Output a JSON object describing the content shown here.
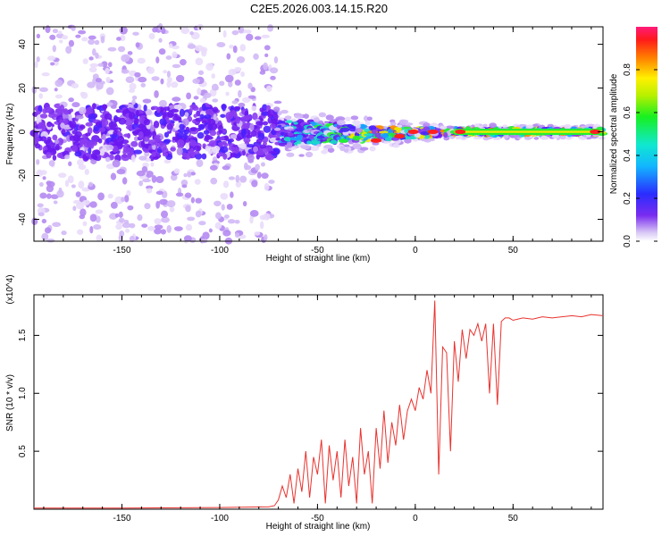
{
  "title": "C2E5.2026.003.14.15.R20",
  "colors": {
    "snr_line": "#e8332f",
    "axis": "#000000"
  },
  "chart_data": [
    {
      "type": "heatmap",
      "xlabel": "Height of straight line (km)",
      "ylabel": "Frequency (Hz)",
      "xlim": [
        -195,
        96
      ],
      "ylim": [
        -50,
        48
      ],
      "xticks": [
        -150,
        -100,
        -50,
        0,
        50
      ],
      "yticks": [
        -40,
        -20,
        0,
        20,
        40
      ],
      "colorbar": {
        "label": "Normalized spectral amplitude",
        "range": [
          0,
          1
        ],
        "ticks": [
          0.0,
          0.2,
          0.4,
          0.6,
          0.8
        ],
        "colormap": "rainbow (purple-blue-cyan-green-yellow-red-magenta)"
      },
      "description_points": [
        {
          "x": -195,
          "noise_band_hz": [
            -50,
            48
          ],
          "core_band_hz": [
            -12,
            12
          ],
          "peak_amp": 0.25
        },
        {
          "x": -72,
          "noise_band_hz": [
            -50,
            48
          ],
          "core_band_hz": [
            -12,
            12
          ],
          "peak_amp": 0.3
        },
        {
          "x": -70,
          "noise_band_hz": [
            -12,
            10
          ],
          "core_band_hz": [
            -6,
            6
          ],
          "peak_amp": 0.45
        },
        {
          "x": -20,
          "noise_band_hz": [
            -8,
            6
          ],
          "core_band_hz": [
            -4,
            2
          ],
          "peak_amp": 0.8
        },
        {
          "x": 20,
          "noise_band_hz": [
            -3,
            3
          ],
          "core_band_hz": [
            -1.5,
            1.5
          ],
          "peak_amp": 0.9
        },
        {
          "x": 96,
          "noise_band_hz": [
            -3,
            3
          ],
          "core_band_hz": [
            -1.5,
            1.5
          ],
          "peak_amp": 0.9
        }
      ]
    },
    {
      "type": "line",
      "xlabel": "Height of straight line (km)",
      "ylabel": "SNR (10 * v/v)",
      "yscale_label": "(x10^4)",
      "xlim": [
        -195,
        96
      ],
      "ylim": [
        0,
        1.85
      ],
      "xticks": [
        -150,
        -100,
        -50,
        0,
        50
      ],
      "yticks": [
        0.5,
        1.0,
        1.5
      ],
      "series": [
        {
          "x": [
            -195,
            -150,
            -100,
            -75,
            -72,
            -70,
            -68,
            -66,
            -64,
            -62,
            -60,
            -58,
            -56,
            -54,
            -52,
            -50,
            -48,
            -46,
            -44,
            -42,
            -40,
            -38,
            -36,
            -34,
            -32,
            -30,
            -28,
            -26,
            -24,
            -22,
            -20,
            -18,
            -16,
            -14,
            -12,
            -10,
            -8,
            -6,
            -4,
            -2,
            0,
            2,
            4,
            6,
            8,
            10,
            12,
            14,
            16,
            18,
            20,
            22,
            24,
            26,
            28,
            30,
            32,
            34,
            36,
            38,
            40,
            42,
            44,
            46,
            48,
            50,
            55,
            60,
            65,
            70,
            75,
            80,
            85,
            90,
            96
          ],
          "y": [
            0.01,
            0.01,
            0.015,
            0.02,
            0.03,
            0.08,
            0.2,
            0.1,
            0.3,
            0.05,
            0.35,
            0.15,
            0.5,
            0.1,
            0.45,
            0.3,
            0.6,
            0.05,
            0.55,
            0.25,
            0.5,
            0.1,
            0.6,
            0.2,
            0.45,
            0.05,
            0.7,
            0.3,
            0.5,
            0.05,
            0.7,
            0.35,
            0.85,
            0.4,
            0.75,
            0.55,
            0.9,
            0.6,
            0.85,
            0.95,
            0.85,
            1.05,
            0.95,
            1.2,
            1.0,
            1.8,
            0.3,
            1.4,
            1.35,
            0.5,
            1.45,
            1.1,
            1.55,
            1.3,
            1.55,
            1.5,
            1.6,
            1.45,
            1.6,
            1.0,
            1.6,
            0.9,
            1.62,
            1.65,
            1.65,
            1.63,
            1.65,
            1.64,
            1.66,
            1.65,
            1.66,
            1.67,
            1.66,
            1.68,
            1.67
          ]
        }
      ]
    }
  ]
}
